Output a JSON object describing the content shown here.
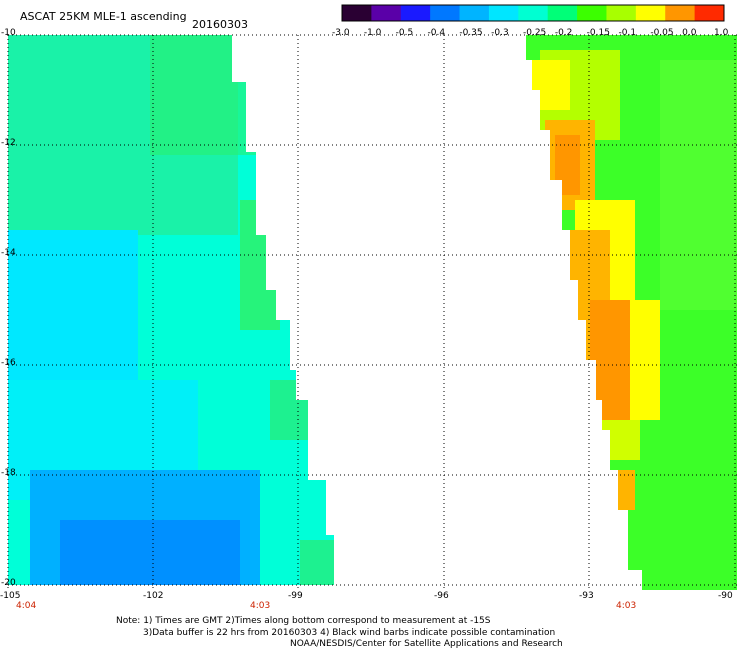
{
  "header": {
    "title": "ASCAT 25KM MLE-1 ascending",
    "date": "20160303"
  },
  "colorbar": {
    "labels": [
      "-3.0",
      "-1.0",
      "-0.5",
      "-0.4",
      "-0.35",
      "-0.3",
      "-0.25",
      "-0.2",
      "-0.15",
      "-0.1",
      "-0.05",
      "0.0",
      "1.0"
    ],
    "colors": [
      "#2a0033",
      "#5a00a8",
      "#1a1aff",
      "#0078ff",
      "#00b4ff",
      "#00e6ff",
      "#00ffd2",
      "#00ff78",
      "#3cff00",
      "#a8ff00",
      "#ffff00",
      "#ff9600",
      "#ff2a00"
    ]
  },
  "axes": {
    "lat_labels": [
      "-10",
      "-12",
      "-14",
      "-16",
      "-18",
      "-20"
    ],
    "lat_values": [
      -10,
      -12,
      -14,
      -16,
      -18,
      -20
    ],
    "lon_labels": [
      "-105",
      "-102",
      "-99",
      "-96",
      "-93",
      "-90"
    ],
    "lon_values": [
      -105,
      -102,
      -99,
      -96,
      -93,
      -90
    ],
    "lon_range": [
      -105,
      -90
    ],
    "lat_range": [
      -10,
      -20
    ],
    "grid": true
  },
  "swath_times": [
    "4:04",
    "4:03",
    "4:03"
  ],
  "notes": {
    "line1": "Note: 1) Times are GMT 2)Times along bottom correspond to measurement at -15S",
    "line2": "3)Data buffer is 22 hrs from 20160303 4) Black wind barbs indicate possible contamination",
    "line3": "NOAA/NESDIS/Center for Satellite Applications and Research"
  }
}
